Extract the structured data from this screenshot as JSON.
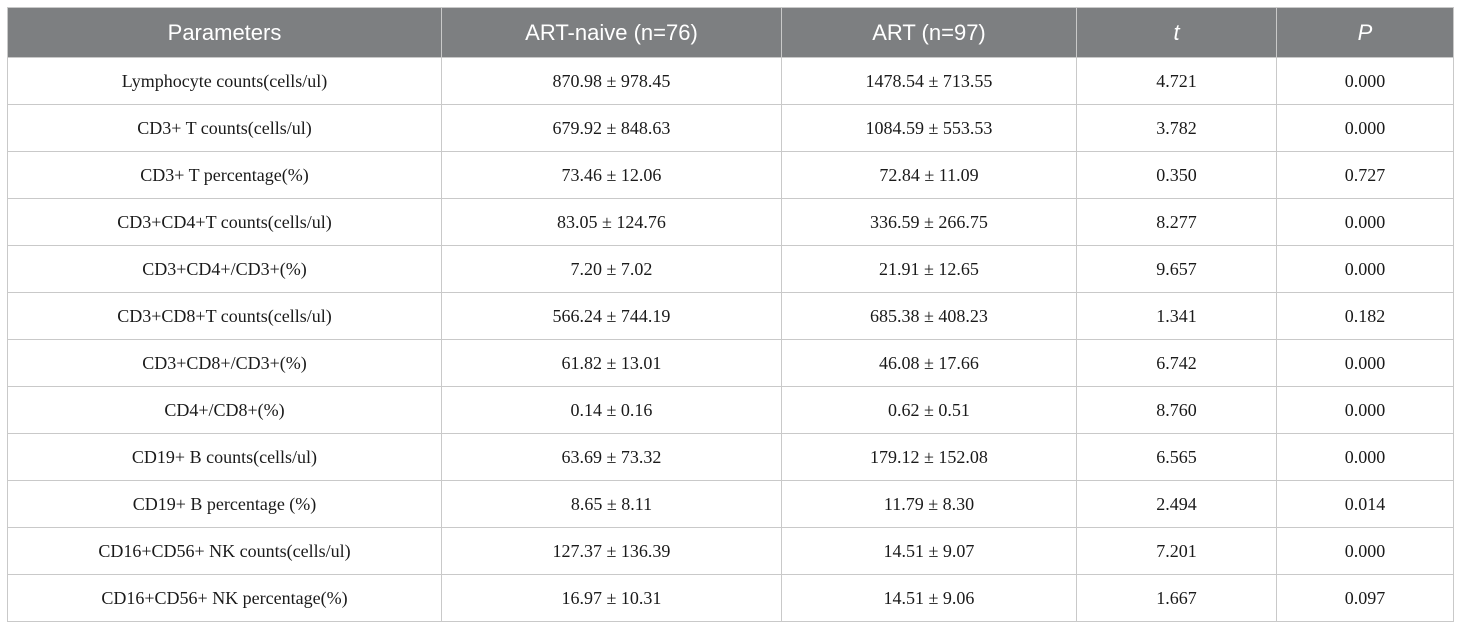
{
  "table": {
    "headers": [
      "Parameters",
      "ART-naive (n=76)",
      "ART (n=97)",
      "t",
      "P"
    ],
    "rows": [
      [
        "Lymphocyte counts(cells/ul)",
        "870.98 ± 978.45",
        "1478.54 ± 713.55",
        "4.721",
        "0.000"
      ],
      [
        "CD3+ T counts(cells/ul)",
        "679.92 ± 848.63",
        "1084.59 ± 553.53",
        "3.782",
        "0.000"
      ],
      [
        "CD3+ T percentage(%)",
        "73.46 ± 12.06",
        "72.84 ± 11.09",
        "0.350",
        "0.727"
      ],
      [
        "CD3+CD4+T counts(cells/ul)",
        "83.05 ± 124.76",
        "336.59 ± 266.75",
        "8.277",
        "0.000"
      ],
      [
        "CD3+CD4+/CD3+(%)",
        "7.20 ± 7.02",
        "21.91 ± 12.65",
        "9.657",
        "0.000"
      ],
      [
        "CD3+CD8+T counts(cells/ul)",
        "566.24 ± 744.19",
        "685.38 ± 408.23",
        "1.341",
        "0.182"
      ],
      [
        "CD3+CD8+/CD3+(%)",
        "61.82 ± 13.01",
        "46.08 ± 17.66",
        "6.742",
        "0.000"
      ],
      [
        "CD4+/CD8+(%)",
        "0.14 ± 0.16",
        "0.62 ± 0.51",
        "8.760",
        "0.000"
      ],
      [
        "CD19+ B counts(cells/ul)",
        "63.69 ± 73.32",
        "179.12 ± 152.08",
        "6.565",
        "0.000"
      ],
      [
        "CD19+ B percentage (%)",
        "8.65 ± 8.11",
        "11.79 ± 8.30",
        "2.494",
        "0.014"
      ],
      [
        "CD16+CD56+ NK counts(cells/ul)",
        "127.37 ± 136.39",
        "14.51 ± 9.07",
        "7.201",
        "0.000"
      ],
      [
        "CD16+CD56+ NK percentage(%)",
        "16.97 ± 10.31",
        "14.51 ± 9.06",
        "1.667",
        "0.097"
      ]
    ]
  },
  "colors": {
    "header_bg": "#7d7f81",
    "header_text": "#ffffff",
    "border": "#c9c9c9"
  }
}
